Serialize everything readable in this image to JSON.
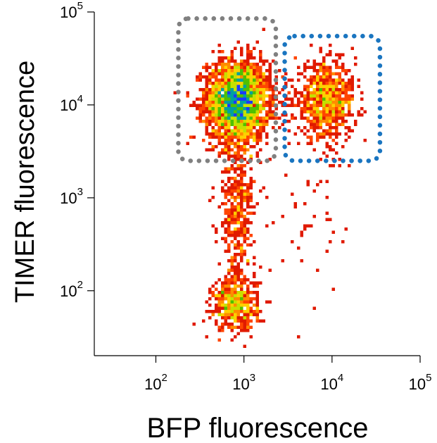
{
  "chart_data": {
    "type": "scatter",
    "subtype": "flow-cytometry-density",
    "xlabel": "BFP fluorescence",
    "ylabel": "TIMER fluorescence",
    "x_scale": "log",
    "y_scale": "log",
    "xlim": [
      20,
      100000
    ],
    "ylim": [
      20,
      100000
    ],
    "x_ticks": [
      {
        "value": 100,
        "base": "10",
        "exp": "2"
      },
      {
        "value": 1000,
        "base": "10",
        "exp": "3"
      },
      {
        "value": 10000,
        "base": "10",
        "exp": "4"
      },
      {
        "value": 100000,
        "base": "10",
        "exp": "5"
      }
    ],
    "y_ticks": [
      {
        "value": 100,
        "base": "10",
        "exp": "2"
      },
      {
        "value": 1000,
        "base": "10",
        "exp": "3"
      },
      {
        "value": 10000,
        "base": "10",
        "exp": "4"
      },
      {
        "value": 100000,
        "base": "10",
        "exp": "5"
      }
    ],
    "grid": false,
    "populations": [
      {
        "x_center": 850,
        "y_center": 11000,
        "x_spread_decades": 0.18,
        "y_spread_decades": 0.22,
        "events": 2600,
        "density": "high"
      },
      {
        "x_center": 8500,
        "y_center": 11000,
        "x_spread_decades": 0.17,
        "y_spread_decades": 0.2,
        "events": 800,
        "density": "medium"
      },
      {
        "x_center": 800,
        "y_center": 70,
        "x_spread_decades": 0.13,
        "y_spread_decades": 0.14,
        "events": 500,
        "density": "medium"
      },
      {
        "x_center": 850,
        "y_center": 700,
        "x_spread_decades": 0.1,
        "y_spread_decades": 0.45,
        "events": 450,
        "density": "low"
      },
      {
        "x_center": 7000,
        "y_center": 800,
        "x_spread_decades": 0.25,
        "y_spread_decades": 0.5,
        "events": 45,
        "density": "low"
      }
    ],
    "gates": [
      {
        "color": "#808080",
        "x_range": [
          180,
          2300
        ],
        "y_range": [
          2500,
          85000
        ]
      },
      {
        "color": "#1a75c0",
        "x_range": [
          2900,
          35000
        ],
        "y_range": [
          2500,
          55000
        ]
      }
    ],
    "density_colors": [
      "#c00000",
      "#e01a00",
      "#ff4500",
      "#ff8c00",
      "#ffd000",
      "#c6e000",
      "#4fc000",
      "#00a0a0",
      "#1a3aff"
    ]
  }
}
